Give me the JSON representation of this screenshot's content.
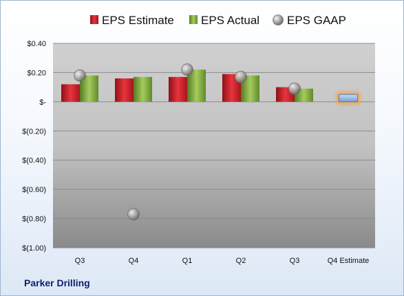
{
  "company": "Parker Drilling",
  "colors": {
    "estimate": "#c0202a",
    "actual": "#77a33a",
    "gaap": "#a8a8a8",
    "q4_estimate": "#8fb5e6",
    "q4_estimate_glow": "#f5a14a"
  },
  "chart_data": {
    "type": "bar",
    "title": "",
    "xlabel": "",
    "ylabel": "",
    "categories": [
      "Q3",
      "Q4",
      "Q1",
      "Q2",
      "Q3",
      "Q4 Estimate"
    ],
    "series": [
      {
        "name": "EPS Estimate",
        "values": [
          0.12,
          0.16,
          0.17,
          0.19,
          0.1,
          null
        ]
      },
      {
        "name": "EPS Actual",
        "values": [
          0.18,
          0.17,
          0.22,
          0.18,
          0.09,
          0.05
        ]
      },
      {
        "name": "EPS GAAP",
        "values": [
          0.18,
          -0.77,
          0.22,
          0.17,
          0.09,
          null
        ]
      }
    ],
    "ylim": [
      -1.0,
      0.4
    ],
    "yticks": [
      0.4,
      0.2,
      0.0,
      -0.2,
      -0.4,
      -0.6,
      -0.8,
      -1.0
    ],
    "ytick_labels": [
      "$0.40",
      "$0.20",
      "$-",
      "$(0.20)",
      "$(0.40)",
      "$(0.60)",
      "$(0.80)",
      "$(1.00)"
    ],
    "grid": true,
    "legend": "top"
  }
}
